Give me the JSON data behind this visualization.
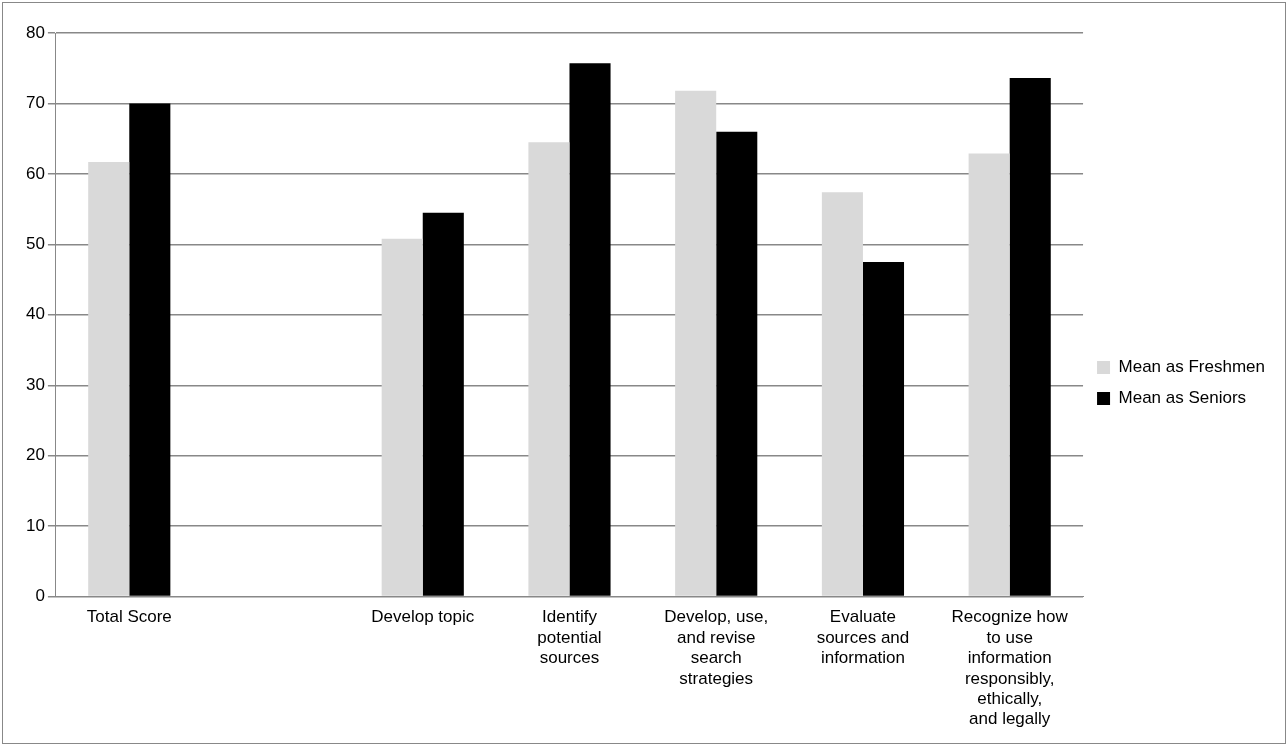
{
  "chart_data": {
    "type": "bar",
    "categories": [
      "Total Score",
      null,
      "Develop topic",
      "Identify potential sources",
      "Develop, use, and revise search strategies",
      "Evaluate sources and information",
      "Recognize how to use information responsibly, ethically, and legally"
    ],
    "series": [
      {
        "name": "Mean as Freshmen",
        "color": "#d9d9d9",
        "values": [
          61.7,
          null,
          50.8,
          64.5,
          71.8,
          57.4,
          62.9
        ]
      },
      {
        "name": "Mean as Seniors",
        "color": "#000000",
        "values": [
          70,
          null,
          54.5,
          75.7,
          66,
          47.5,
          73.6
        ]
      }
    ],
    "ylim": [
      0,
      80
    ],
    "yticks": [
      0,
      10,
      20,
      30,
      40,
      50,
      60,
      70,
      80
    ],
    "grid": "y",
    "legend": "right"
  }
}
